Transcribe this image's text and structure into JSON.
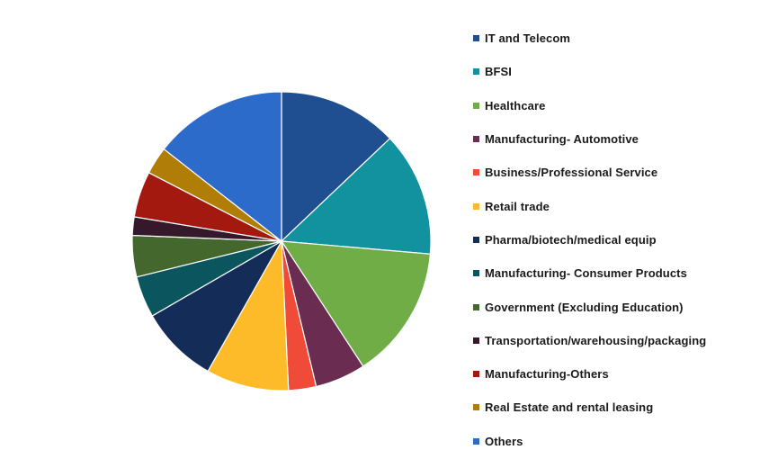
{
  "chart_data": {
    "type": "pie",
    "title": "",
    "legend_position": "right",
    "slices": [
      {
        "label": "IT and Telecom",
        "value": 13.0,
        "color": "#1f4e91"
      },
      {
        "label": "BFSI",
        "value": 13.5,
        "color": "#12929f"
      },
      {
        "label": "Healthcare",
        "value": 14.5,
        "color": "#70ad47"
      },
      {
        "label": "Manufacturing- Automotive",
        "value": 5.5,
        "color": "#6b2c51"
      },
      {
        "label": "Business/Professional Service",
        "value": 3.0,
        "color": "#f04a38"
      },
      {
        "label": "Retail trade",
        "value": 9.0,
        "color": "#fdbb2a"
      },
      {
        "label": "Pharma/biotech/medical equip",
        "value": 8.5,
        "color": "#132c58"
      },
      {
        "label": "Manufacturing- Consumer Products",
        "value": 4.5,
        "color": "#0b565e"
      },
      {
        "label": "Government (Excluding Education)",
        "value": 4.5,
        "color": "#43672c"
      },
      {
        "label": "Transportation/warehousing/packaging",
        "value": 2.0,
        "color": "#36182b"
      },
      {
        "label": "Manufacturing-Others",
        "value": 5.0,
        "color": "#a3190f"
      },
      {
        "label": "Real Estate and rental leasing",
        "value": 3.0,
        "color": "#b07e06"
      },
      {
        "label": "Others",
        "value": 14.5,
        "color": "#2d6bcb"
      }
    ]
  }
}
